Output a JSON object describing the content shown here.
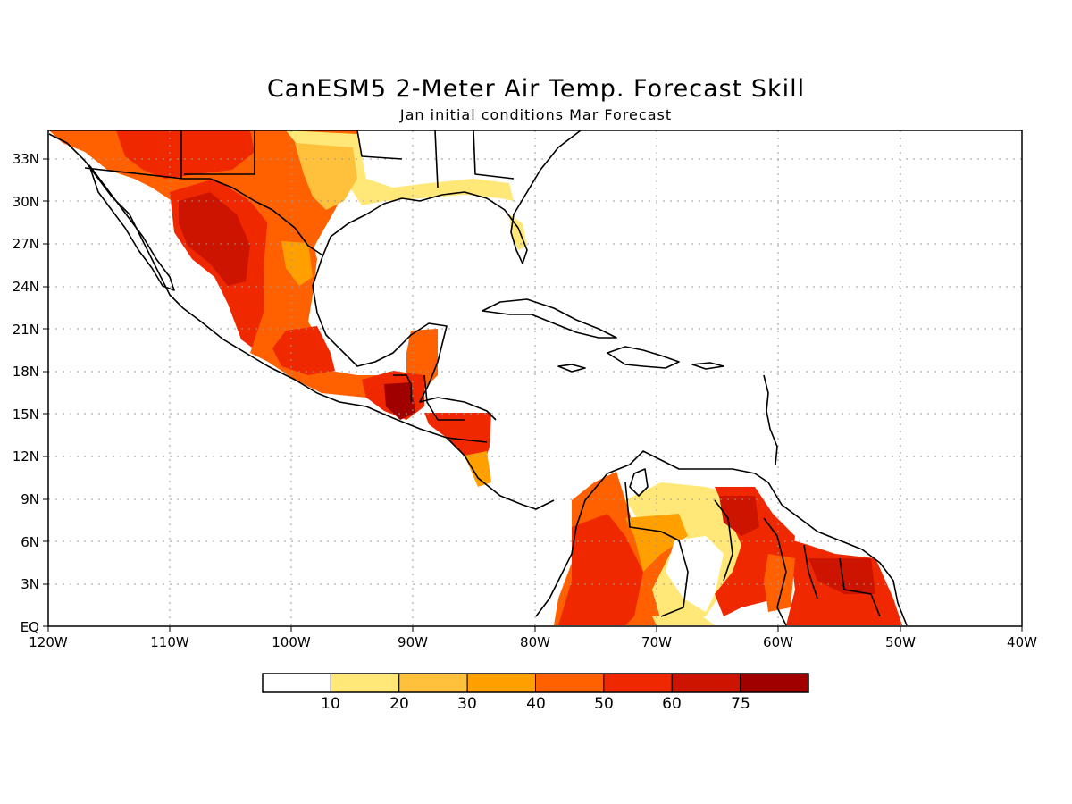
{
  "title": "CanESM5 2-Meter Air Temp. Forecast Skill",
  "subtitle": "Jan initial conditions  Mar Forecast",
  "map": {
    "projection": "equirectangular",
    "lon_range": [
      -120,
      -40
    ],
    "lat_range": [
      0,
      35
    ],
    "grid": "dotted",
    "lon_ticks": [
      "120W",
      "110W",
      "100W",
      "90W",
      "80W",
      "70W",
      "60W",
      "50W",
      "40W"
    ],
    "lat_ticks": [
      "EQ",
      "3N",
      "6N",
      "9N",
      "12N",
      "15N",
      "18N",
      "21N",
      "24N",
      "27N",
      "30N",
      "33N"
    ]
  },
  "colorbar": {
    "labels": [
      "10",
      "20",
      "30",
      "40",
      "50",
      "60",
      "75"
    ],
    "colors": [
      "#ffffff",
      "#ffe878",
      "#ffc03c",
      "#ffa000",
      "#ff6000",
      "#f02800",
      "#cc1400",
      "#a00000"
    ]
  },
  "regions": [
    {
      "name": "mexico-west",
      "level": 6
    },
    {
      "name": "mexico-east",
      "level": 4
    },
    {
      "name": "us-southwest",
      "level": 5
    },
    {
      "name": "us-gulf-coast",
      "level": 1
    },
    {
      "name": "guatemala",
      "level": 7
    },
    {
      "name": "yucatan",
      "level": 5
    },
    {
      "name": "honduras-nicaragua",
      "level": 5
    },
    {
      "name": "colombia",
      "level": 5
    },
    {
      "name": "venezuela-orinoco",
      "level": 1
    },
    {
      "name": "guyana-suriname",
      "level": 5
    }
  ]
}
